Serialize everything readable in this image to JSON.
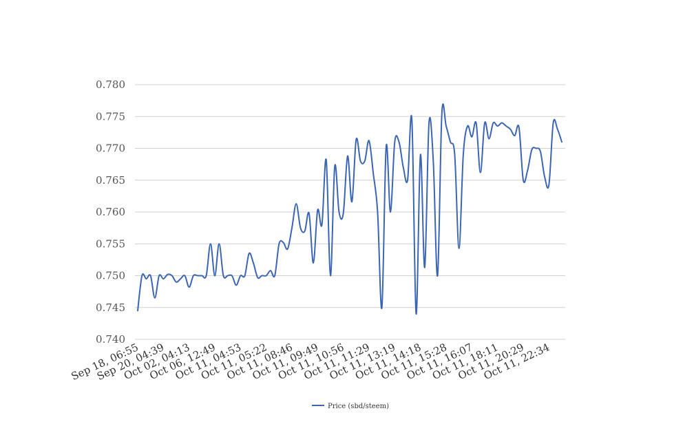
{
  "chart_data": {
    "type": "line",
    "title": "",
    "xlabel": "",
    "ylabel": "",
    "ylim": [
      0.74,
      0.78
    ],
    "yticks": [
      "0.740",
      "0.745",
      "0.750",
      "0.755",
      "0.760",
      "0.765",
      "0.770",
      "0.775",
      "0.780"
    ],
    "ytick_values": [
      0.74,
      0.745,
      0.75,
      0.755,
      0.76,
      0.765,
      0.77,
      0.775,
      0.78
    ],
    "grid": true,
    "legend_position": "bottom",
    "categories": [
      "Sep 18, 06:55",
      "",
      "",
      "",
      "",
      "",
      "Sep 20, 04:39",
      "",
      "",
      "",
      "",
      "",
      "Oct 02, 04:13",
      "",
      "",
      "",
      "",
      "",
      "Oct 06, 12:49",
      "",
      "",
      "",
      "",
      "",
      "Oct 11, 04:53",
      "",
      "",
      "",
      "",
      "",
      "Oct 11, 05:22",
      "",
      "",
      "",
      "",
      "",
      "Oct 11, 08:46",
      "",
      "",
      "",
      "",
      "",
      "Oct 11, 09:49",
      "",
      "",
      "",
      "",
      "",
      "Oct 11, 10:56",
      "",
      "",
      "",
      "",
      "",
      "Oct 11, 11:29",
      "",
      "",
      "",
      "",
      "",
      "Oct 11, 13:19",
      "",
      "",
      "",
      "",
      "",
      "Oct 11, 14:18",
      "",
      "",
      "",
      "",
      "",
      "Oct 11, 15:28",
      "",
      "",
      "",
      "",
      "",
      "Oct 11, 16:07",
      "",
      "",
      "",
      "",
      "",
      "Oct 11, 18:11",
      "",
      "",
      "",
      "",
      "",
      "Oct 11, 20:29",
      "",
      "",
      "",
      "",
      "",
      "Oct 11, 22:34",
      "",
      "",
      ""
    ],
    "series": [
      {
        "name": "Price (sbd/steem)",
        "color": "#3a65b4",
        "values": [
          0.7445,
          0.75,
          0.7495,
          0.75,
          0.7465,
          0.75,
          0.7495,
          0.7502,
          0.75,
          0.749,
          0.7495,
          0.75,
          0.7482,
          0.75,
          0.75,
          0.75,
          0.75,
          0.755,
          0.75,
          0.755,
          0.75,
          0.75,
          0.75,
          0.7485,
          0.75,
          0.75,
          0.7535,
          0.752,
          0.7497,
          0.75,
          0.75,
          0.7508,
          0.75,
          0.755,
          0.7552,
          0.7542,
          0.7575,
          0.7613,
          0.7575,
          0.757,
          0.7598,
          0.752,
          0.7603,
          0.758,
          0.7682,
          0.75,
          0.7672,
          0.76,
          0.7598,
          0.7688,
          0.7616,
          0.7714,
          0.768,
          0.768,
          0.7712,
          0.766,
          0.76,
          0.745,
          0.7703,
          0.76,
          0.771,
          0.771,
          0.767,
          0.765,
          0.7745,
          0.744,
          0.769,
          0.7513,
          0.774,
          0.768,
          0.75,
          0.7755,
          0.7735,
          0.771,
          0.769,
          0.7543,
          0.769,
          0.7735,
          0.7718,
          0.774,
          0.7662,
          0.774,
          0.7715,
          0.774,
          0.7735,
          0.774,
          0.7735,
          0.773,
          0.772,
          0.7733,
          0.765,
          0.7665,
          0.7698,
          0.77,
          0.7695,
          0.7655,
          0.7643,
          0.774,
          0.773,
          0.771
        ]
      }
    ]
  }
}
